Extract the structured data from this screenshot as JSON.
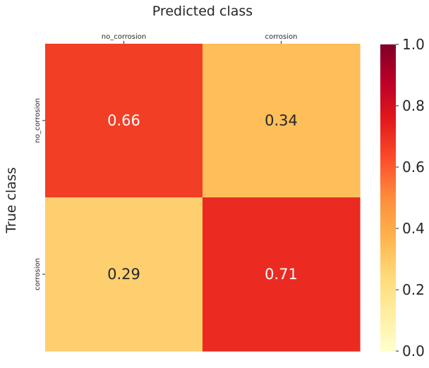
{
  "chart_data": {
    "type": "heatmap",
    "xlabel": "Predicted class",
    "ylabel": "True class",
    "x_categories": [
      "no_corrosion",
      "corrosion"
    ],
    "y_categories": [
      "no_corrosion",
      "corrosion"
    ],
    "values": [
      [
        0.66,
        0.34
      ],
      [
        0.29,
        0.71
      ]
    ],
    "cell_labels": [
      [
        "0.66",
        "0.34"
      ],
      [
        "0.29",
        "0.71"
      ]
    ],
    "x_tick_position": "top",
    "colormap": "YlOrRd",
    "colorbar": {
      "range": [
        0.0,
        1.0
      ],
      "ticks": [
        0.0,
        0.2,
        0.4,
        0.6,
        0.8,
        1.0
      ],
      "tick_labels": [
        "0.0",
        "0.2",
        "0.4",
        "0.6",
        "0.8",
        "1.0"
      ]
    },
    "colors": {
      "cell_0_0": "#f33e26",
      "cell_0_1": "#febe59",
      "cell_1_0": "#fecf6f",
      "cell_1_1": "#eb2b21",
      "cell_text": "#ffffff",
      "cell_text_dark": "#262626",
      "cmap_stops": [
        "#ffffcc",
        "#ffeda0",
        "#fed976",
        "#feb24c",
        "#fd8d3c",
        "#fc4e2a",
        "#e31a1c",
        "#bd0026",
        "#800026"
      ]
    }
  }
}
